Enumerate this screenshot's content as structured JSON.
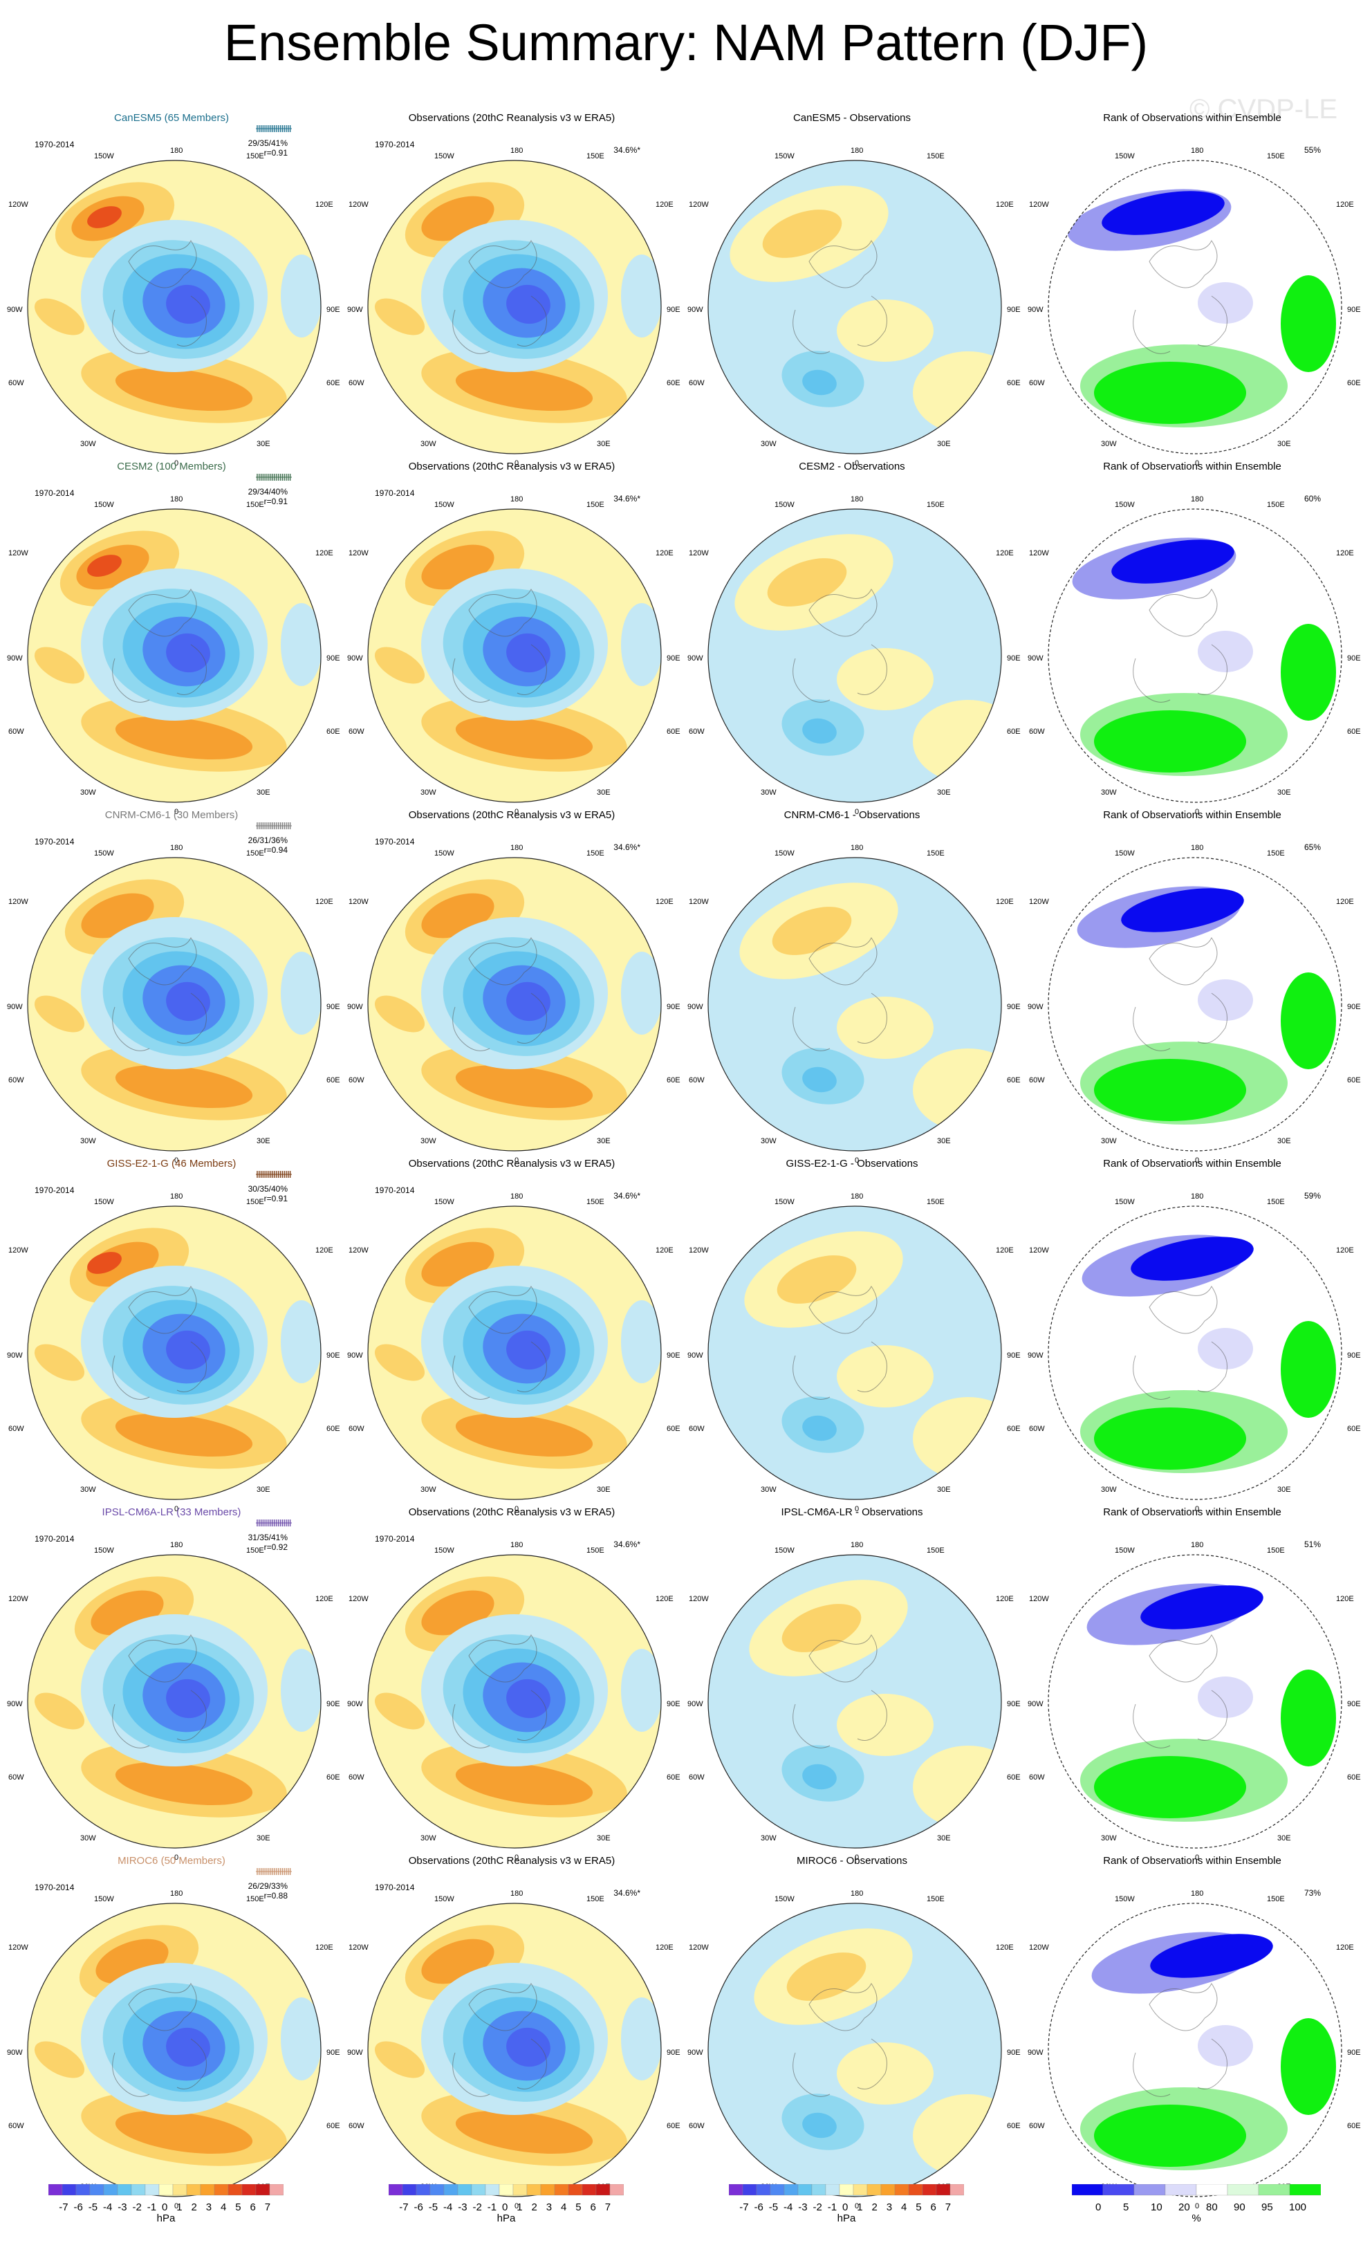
{
  "title": "Ensemble Summary: NAM Pattern (DJF)",
  "watermark": "© CVDP-LE",
  "period": "1970-2014",
  "obs_title": "Observations (20thC Reanalysis v3 w ERA5)",
  "obs_pct": "34.6%*",
  "rank_title": "Rank of Observations within Ensemble",
  "lon_labels": {
    "top": "180",
    "tl": "150W",
    "tr": "150E",
    "ul": "120W",
    "ur": "120E",
    "l": "90W",
    "r": "90E",
    "ll": "60W",
    "lr": "60E",
    "bl": "30W",
    "br": "30E",
    "bottom": "0"
  },
  "models": [
    {
      "name": "CanESM5 (65 Members)",
      "short": "CanESM5",
      "diff_title": "CanESM5 - Observations",
      "stats": "29/35/41%",
      "r": "r=0.91",
      "rank_pct": "55%",
      "color": "#1a6e8c"
    },
    {
      "name": "CESM2 (100 Members)",
      "short": "CESM2",
      "diff_title": "CESM2 - Observations",
      "stats": "29/34/40%",
      "r": "r=0.91",
      "rank_pct": "60%",
      "color": "#3a6b4a"
    },
    {
      "name": "CNRM-CM6-1 (30 Members)",
      "short": "CNRM-CM6-1",
      "diff_title": "CNRM-CM6-1 - Observations",
      "stats": "26/31/36%",
      "r": "r=0.94",
      "rank_pct": "65%",
      "color": "#7a7a7a"
    },
    {
      "name": "GISS-E2-1-G (46 Members)",
      "short": "GISS-E2-1-G",
      "diff_title": "GISS-E2-1-G - Observations",
      "stats": "30/35/40%",
      "r": "r=0.91",
      "rank_pct": "59%",
      "color": "#7a3a10"
    },
    {
      "name": "IPSL-CM6A-LR (33 Members)",
      "short": "IPSL-CM6A-LR",
      "diff_title": "IPSL-CM6A-LR - Observations",
      "stats": "31/35/41%",
      "r": "r=0.92",
      "rank_pct": "51%",
      "color": "#6a4aa8"
    },
    {
      "name": "MIROC6 (50 Members)",
      "short": "MIROC6",
      "diff_title": "MIROC6 - Observations",
      "stats": "26/29/33%",
      "r": "r=0.88",
      "rank_pct": "73%",
      "color": "#c8906a"
    }
  ],
  "colorbar_hpa": {
    "ticks": [
      "-7",
      "-6",
      "-5",
      "-4",
      "-3",
      "-2",
      "-1",
      "0",
      "1",
      "2",
      "3",
      "4",
      "5",
      "6",
      "7"
    ],
    "unit": "hPa",
    "colors": [
      "#7a2fd6",
      "#4040e8",
      "#4a64f0",
      "#4f88f2",
      "#52a6f0",
      "#62c4ee",
      "#8fd8f0",
      "#c4e8f5",
      "#ffffc0",
      "#fde58a",
      "#fcc24e",
      "#f9a12c",
      "#f37a22",
      "#e8501c",
      "#d92b1e",
      "#c81818",
      "#f2a8a8"
    ]
  },
  "colorbar_rank": {
    "ticks": [
      "0",
      "5",
      "10",
      "20",
      "80",
      "90",
      "95",
      "100"
    ],
    "unit": "%",
    "colors": [
      "#0a0af0",
      "#4a4af0",
      "#9a9af0",
      "#dcdcfa",
      "#ffffff",
      "#dcfadc",
      "#9af09a",
      "#10f010"
    ]
  }
}
